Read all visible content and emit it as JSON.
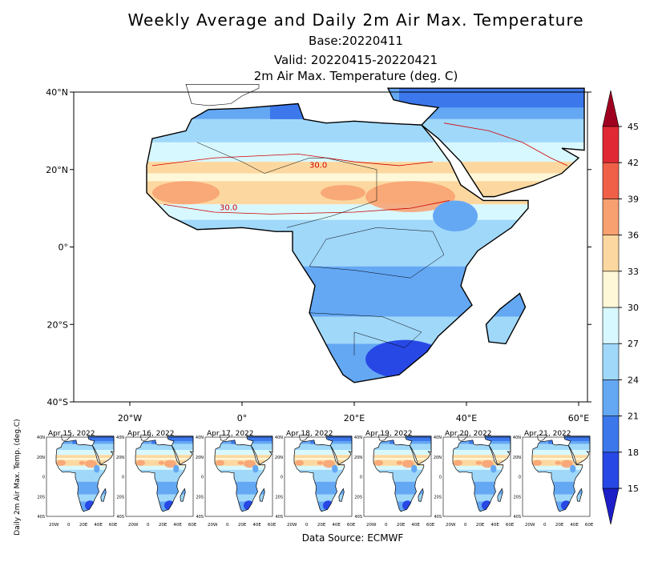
{
  "title": "Weekly Average and Daily 2m Air Max. Temperature",
  "base": "Base:20220411",
  "valid": "Valid: 20220415-20220421",
  "variable": "2m Air Max. Temperature (deg. C)",
  "main_map": {
    "lat_labels": [
      "40°N",
      "20°N",
      "0°",
      "20°S",
      "40°S"
    ],
    "lon_labels": [
      "20°W",
      "0°",
      "20°E",
      "40°E",
      "60°E"
    ],
    "contour_labels": [
      "30.0",
      "30.0"
    ]
  },
  "colorbar": {
    "ticks": [
      15,
      18,
      21,
      24,
      27,
      30,
      33,
      36,
      39,
      42,
      45
    ],
    "colors": [
      "#1e1ec8",
      "#2848e6",
      "#3c78ec",
      "#64a8f4",
      "#a0d8fa",
      "#d8f8ff",
      "#fff8d8",
      "#fcd8a0",
      "#f8a070",
      "#f06048",
      "#e02834",
      "#a00020"
    ]
  },
  "daily_panels": {
    "ylabel": "Daily 2m Air Max. Temp. (deg.C)",
    "dates": [
      "Apr 15, 2022",
      "Apr 16, 2022",
      "Apr 17, 2022",
      "Apr 18, 2022",
      "Apr 19, 2022",
      "Apr 20, 2022",
      "Apr 21, 2022"
    ],
    "lat_labels": [
      "40N",
      "20N",
      "0",
      "20S",
      "40S"
    ],
    "lon_labels": [
      "20W",
      "0",
      "20E",
      "40E",
      "60E"
    ]
  },
  "source": "Data Source: ECMWF"
}
